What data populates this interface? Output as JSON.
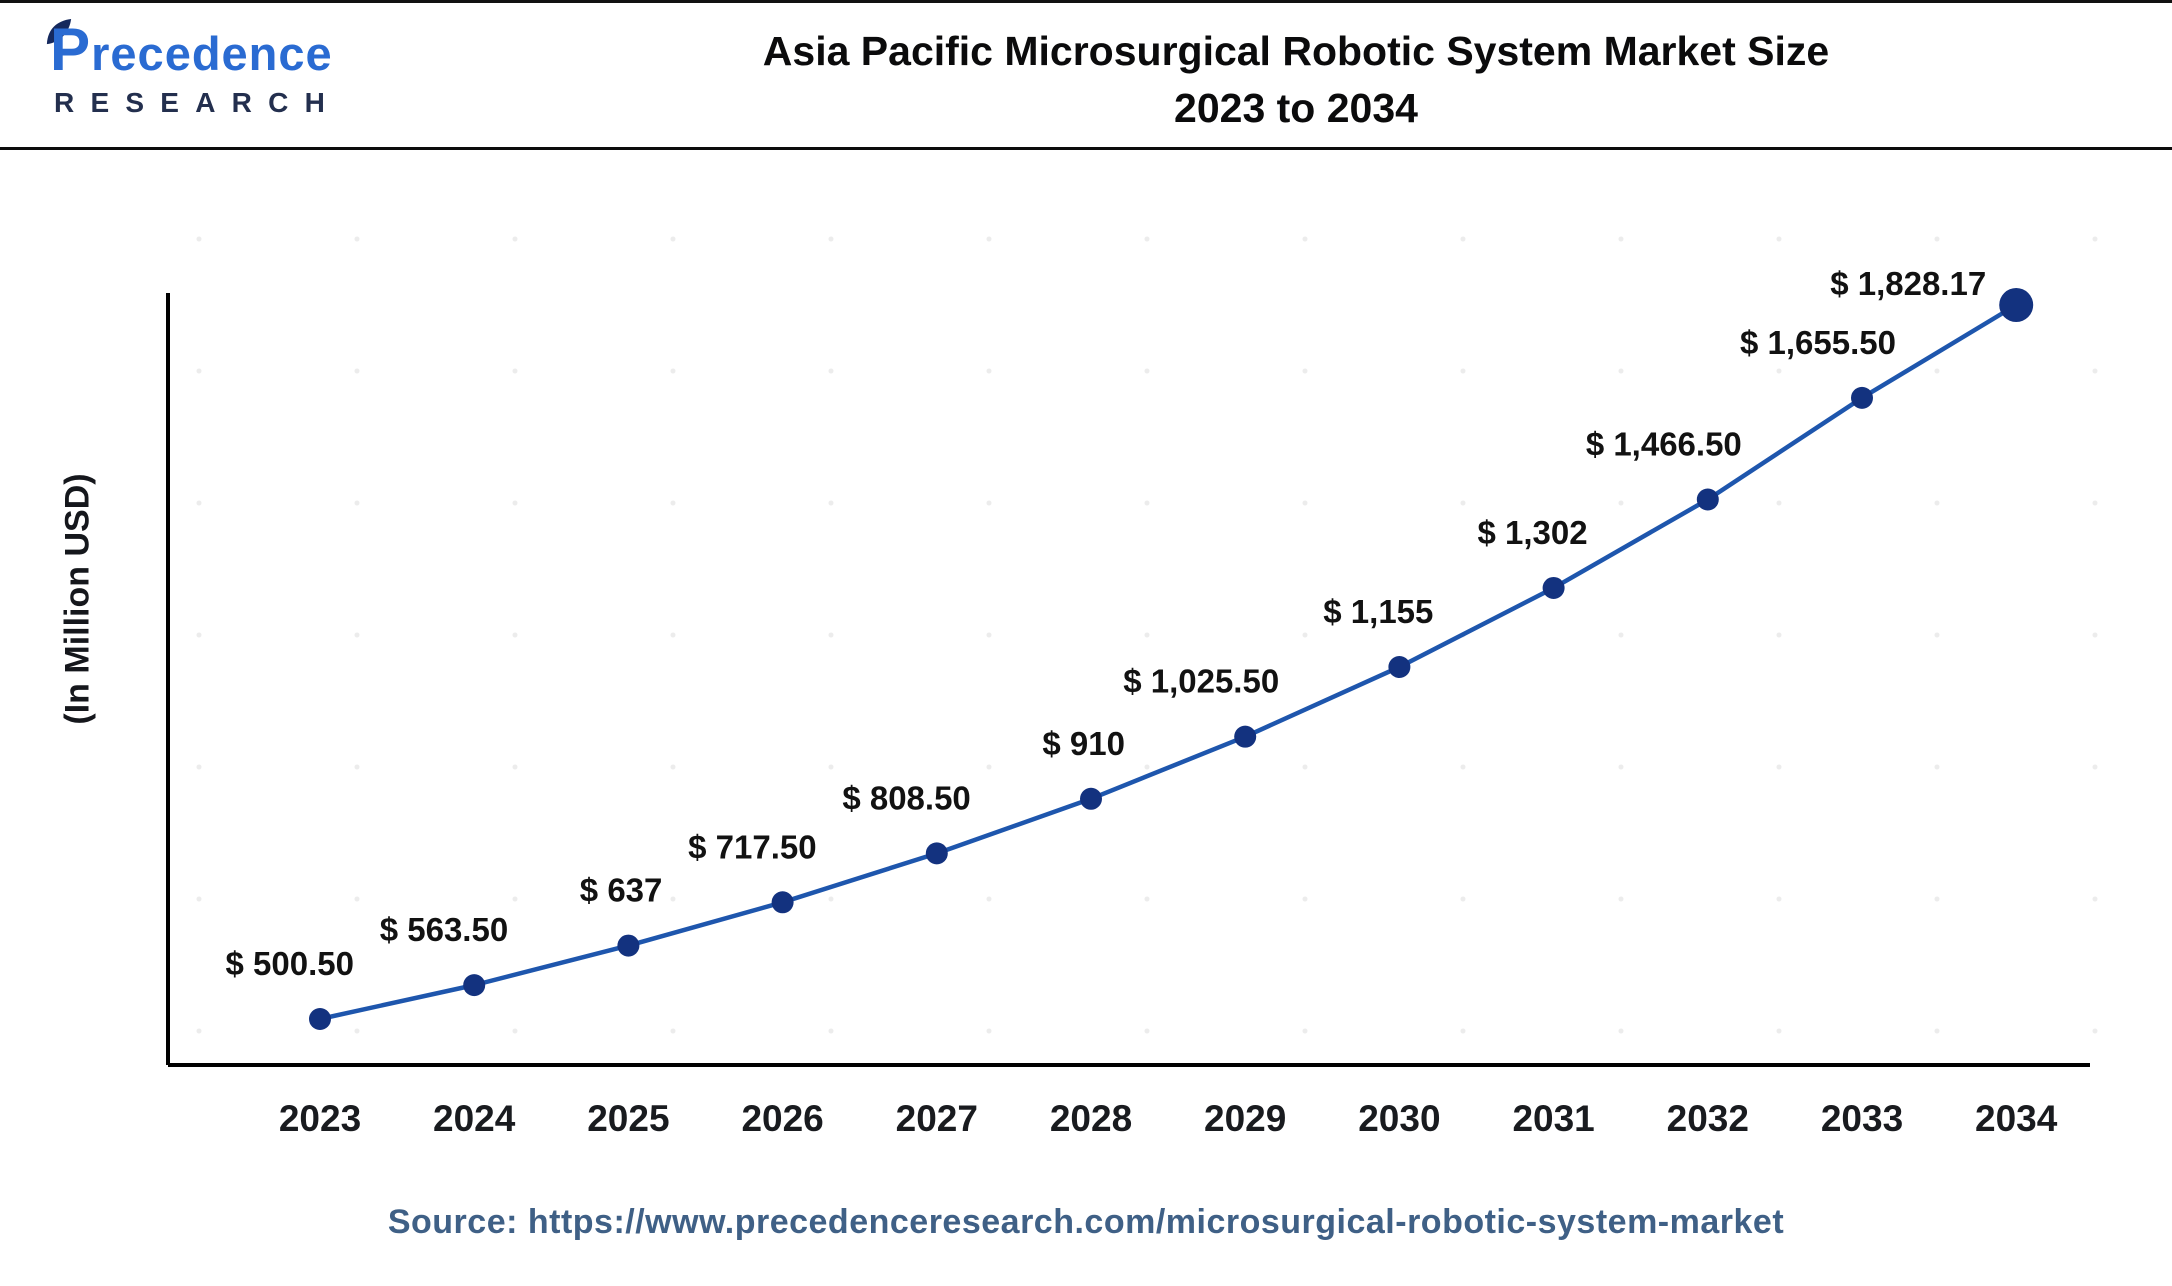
{
  "header": {
    "logo_main": "Precedence",
    "logo_sub": "RESEARCH",
    "title_line1": "Asia Pacific Microsurgical Robotic System Market Size",
    "title_line2": "2023 to 2034"
  },
  "chart_data": {
    "type": "line",
    "title": "Asia Pacific Microsurgical Robotic System Market Size 2023 to 2034",
    "ylabel": "(In Million USD)",
    "xlabel": "",
    "categories": [
      "2023",
      "2024",
      "2025",
      "2026",
      "2027",
      "2028",
      "2029",
      "2030",
      "2031",
      "2032",
      "2033",
      "2034"
    ],
    "values": [
      500.5,
      563.5,
      637,
      717.5,
      808.5,
      910,
      1025.5,
      1155,
      1302,
      1466.5,
      1655.5,
      1828.17
    ],
    "point_labels": [
      "$ 500.50",
      "$ 563.50",
      "$ 637",
      "$ 717.50",
      "$ 808.50",
      "$ 910",
      "$ 1,025.50",
      "$ 1,155",
      "$ 1,302",
      "$ 1,466.50",
      "$ 1,655.50",
      "$ 1,828.17"
    ],
    "unit": "Million USD",
    "grid": false,
    "legend": false,
    "line_color": "#1e56ad",
    "marker_color": "#13327f",
    "axis_color": "#000000",
    "label_color": "#121212",
    "tick_color": "#191b1f",
    "ylim": [
      418,
      1850
    ]
  },
  "theme": {
    "accent": "#1e56ad",
    "marker": "#13327f",
    "source_text": "#3f6086",
    "logo_blue": "#2a6bd2",
    "logo_navy": "#232f4e"
  },
  "footer": {
    "source": "Source: https://www.precedenceresearch.com/microsurgical-robotic-system-market"
  }
}
